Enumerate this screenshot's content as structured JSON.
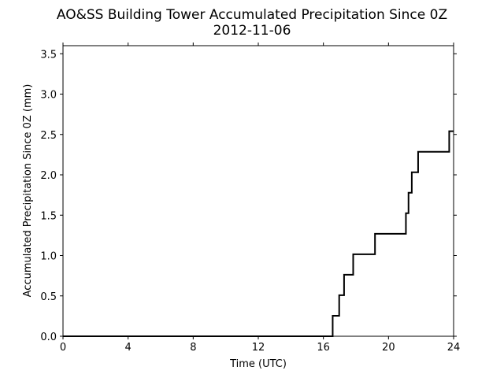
{
  "chart_data": {
    "type": "line",
    "title": "AO&SS Building Tower Accumulated Precipitation Since 0Z",
    "subtitle": "2012-11-06",
    "xlabel": "Time (UTC)",
    "ylabel": "Accumulated Precipitation Since 0Z (mm)",
    "xlim": [
      0,
      24
    ],
    "ylim": [
      0,
      3.6
    ],
    "xticks": [
      0,
      4,
      8,
      12,
      16,
      20,
      24
    ],
    "xtick_labels": [
      "0",
      "4",
      "8",
      "12",
      "16",
      "20",
      "24"
    ],
    "yticks": [
      0.0,
      0.5,
      1.0,
      1.5,
      2.0,
      2.5,
      3.0,
      3.5
    ],
    "ytick_labels": [
      "0.0",
      "0.5",
      "1.0",
      "1.5",
      "2.0",
      "2.5",
      "3.0",
      "3.5"
    ],
    "grid": false,
    "line_color": "#000000",
    "series": [
      {
        "step": "post",
        "x": [
          0,
          16.57,
          16.97,
          17.27,
          17.83,
          19.17,
          21.07,
          21.23,
          21.43,
          21.82,
          23.73,
          24
        ],
        "values": [
          0.0,
          0.254,
          0.508,
          0.762,
          1.016,
          1.27,
          1.524,
          1.778,
          2.032,
          2.286,
          2.54,
          2.54
        ]
      }
    ]
  }
}
